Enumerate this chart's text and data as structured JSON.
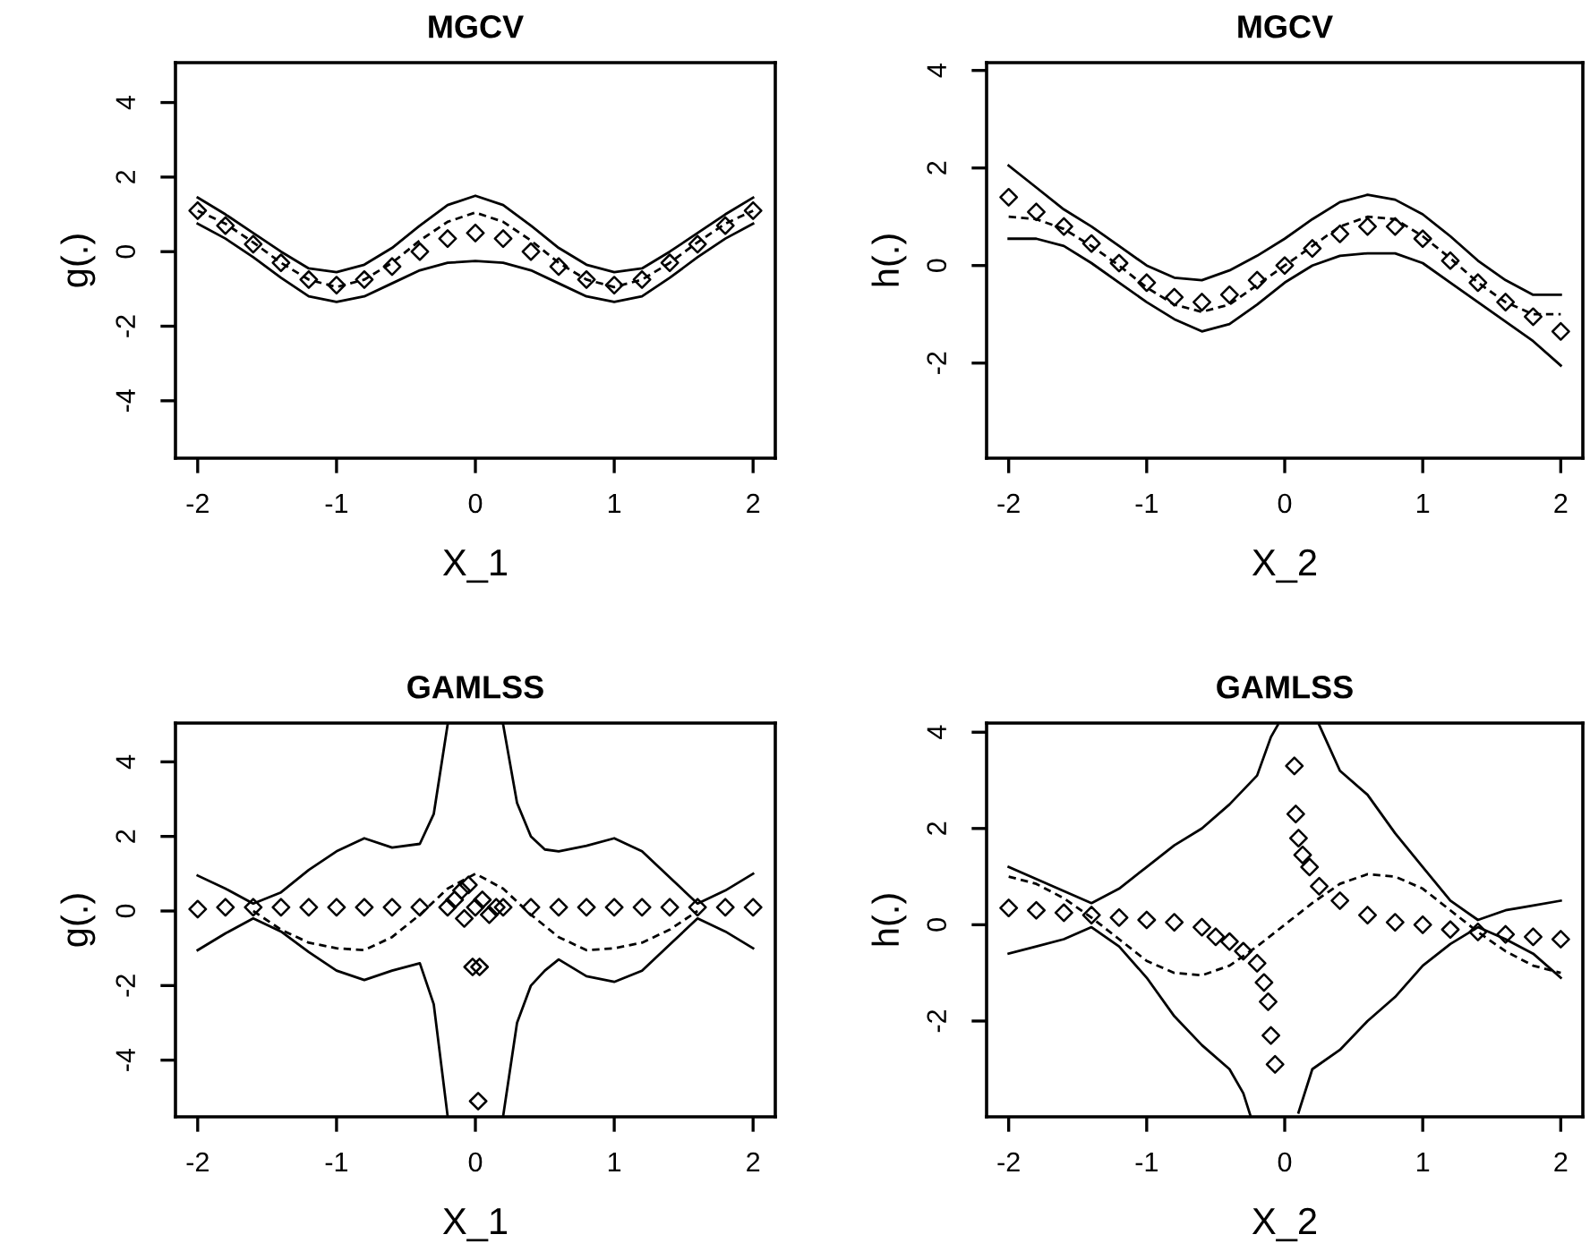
{
  "chart_data": [
    {
      "type": "line",
      "title": "MGCV",
      "xlabel": "X_1",
      "ylabel": "g(.)",
      "xlim": [
        -2.16,
        2.16
      ],
      "ylim": [
        -5.54,
        5.07
      ],
      "xticks": [
        -2,
        -1,
        0,
        1,
        2
      ],
      "yticks": [
        -4,
        -2,
        0,
        2,
        4
      ],
      "grid": false,
      "legend": false,
      "series": [
        {
          "type": "scatter",
          "marker": "diamond",
          "color": "#000000",
          "x": [
            -2,
            -1.8,
            -1.6,
            -1.4,
            -1.2,
            -1,
            -0.8,
            -0.6,
            -0.4,
            -0.2,
            0,
            0.2,
            0.4,
            0.6,
            0.8,
            1,
            1.2,
            1.4,
            1.6,
            1.8,
            2
          ],
          "values": [
            1.1,
            0.7,
            0.2,
            -0.3,
            -0.75,
            -0.9,
            -0.75,
            -0.4,
            0.0,
            0.35,
            0.5,
            0.35,
            0.0,
            -0.4,
            -0.75,
            -0.9,
            -0.75,
            -0.3,
            0.2,
            0.7,
            1.1
          ]
        },
        {
          "line_style": "dashed",
          "color": "#000000",
          "x": [
            -2,
            -1.8,
            -1.6,
            -1.4,
            -1.2,
            -1,
            -0.8,
            -0.6,
            -0.4,
            -0.2,
            0,
            0.2,
            0.4,
            0.6,
            0.8,
            1,
            1.2,
            1.4,
            1.6,
            1.8,
            2
          ],
          "values": [
            1.1,
            0.75,
            0.25,
            -0.3,
            -0.75,
            -0.95,
            -0.75,
            -0.3,
            0.3,
            0.8,
            1.05,
            0.8,
            0.3,
            -0.3,
            -0.75,
            -0.95,
            -0.75,
            -0.3,
            0.25,
            0.75,
            1.1
          ]
        },
        {
          "type": "line",
          "line_style": "solid",
          "color": "#000000",
          "x": [
            -2,
            -1.8,
            -1.6,
            -1.4,
            -1.2,
            -1,
            -0.8,
            -0.6,
            -0.4,
            -0.2,
            0,
            0.2,
            0.4,
            0.6,
            0.8,
            1,
            1.2,
            1.4,
            1.6,
            1.8,
            2
          ],
          "values": [
            1.45,
            1.0,
            0.5,
            0.0,
            -0.45,
            -0.55,
            -0.35,
            0.1,
            0.7,
            1.25,
            1.5,
            1.25,
            0.7,
            0.1,
            -0.35,
            -0.55,
            -0.45,
            0.0,
            0.5,
            1.0,
            1.45
          ]
        },
        {
          "type": "line",
          "line_style": "solid",
          "color": "#000000",
          "x": [
            -2,
            -1.8,
            -1.6,
            -1.4,
            -1.2,
            -1,
            -0.8,
            -0.6,
            -0.4,
            -0.2,
            0,
            0.2,
            0.4,
            0.6,
            0.8,
            1,
            1.2,
            1.4,
            1.6,
            1.8,
            2
          ],
          "values": [
            0.75,
            0.35,
            -0.15,
            -0.7,
            -1.2,
            -1.35,
            -1.2,
            -0.85,
            -0.5,
            -0.3,
            -0.25,
            -0.3,
            -0.5,
            -0.85,
            -1.2,
            -1.35,
            -1.2,
            -0.7,
            -0.15,
            0.35,
            0.75
          ]
        }
      ]
    },
    {
      "type": "line",
      "title": "MGCV",
      "xlabel": "X_2",
      "ylabel": "h(.)",
      "xlim": [
        -2.16,
        2.16
      ],
      "ylim": [
        -3.95,
        4.16
      ],
      "xticks": [
        -2,
        -1,
        0,
        1,
        2
      ],
      "yticks": [
        -2,
        0,
        2,
        4
      ],
      "grid": false,
      "legend": false,
      "series": [
        {
          "type": "scatter",
          "marker": "diamond",
          "color": "#000000",
          "x": [
            -2,
            -1.8,
            -1.6,
            -1.4,
            -1.2,
            -1,
            -0.8,
            -0.6,
            -0.4,
            -0.2,
            0,
            0.2,
            0.4,
            0.6,
            0.8,
            1,
            1.2,
            1.4,
            1.6,
            1.8,
            2
          ],
          "values": [
            1.4,
            1.1,
            0.8,
            0.45,
            0.05,
            -0.35,
            -0.65,
            -0.75,
            -0.6,
            -0.3,
            0.0,
            0.35,
            0.65,
            0.8,
            0.8,
            0.55,
            0.1,
            -0.35,
            -0.75,
            -1.05,
            -1.35
          ]
        },
        {
          "line_style": "dashed",
          "color": "#000000",
          "x": [
            -2,
            -1.8,
            -1.6,
            -1.4,
            -1.2,
            -1,
            -0.8,
            -0.6,
            -0.4,
            -0.2,
            0,
            0.2,
            0.4,
            0.6,
            0.8,
            1,
            1.2,
            1.4,
            1.6,
            1.8,
            2
          ],
          "values": [
            1.0,
            0.95,
            0.75,
            0.4,
            0.0,
            -0.45,
            -0.8,
            -0.95,
            -0.8,
            -0.4,
            0.0,
            0.4,
            0.8,
            1.0,
            0.95,
            0.6,
            0.15,
            -0.35,
            -0.75,
            -1.0,
            -1.0
          ]
        },
        {
          "type": "line",
          "line_style": "solid",
          "color": "#000000",
          "x": [
            -2,
            -1.8,
            -1.6,
            -1.4,
            -1.2,
            -1,
            -0.8,
            -0.6,
            -0.4,
            -0.2,
            0,
            0.2,
            0.4,
            0.6,
            0.8,
            1,
            1.2,
            1.4,
            1.6,
            1.8,
            2
          ],
          "values": [
            2.05,
            1.6,
            1.15,
            0.8,
            0.4,
            0.0,
            -0.25,
            -0.3,
            -0.1,
            0.2,
            0.55,
            0.95,
            1.3,
            1.45,
            1.35,
            1.05,
            0.6,
            0.1,
            -0.3,
            -0.6,
            -0.6
          ]
        },
        {
          "type": "line",
          "line_style": "solid",
          "color": "#000000",
          "x": [
            -2,
            -1.8,
            -1.6,
            -1.4,
            -1.2,
            -1,
            -0.8,
            -0.6,
            -0.4,
            -0.2,
            0,
            0.2,
            0.4,
            0.6,
            0.8,
            1,
            1.2,
            1.4,
            1.6,
            1.8,
            2
          ],
          "values": [
            0.55,
            0.55,
            0.4,
            0.05,
            -0.35,
            -0.75,
            -1.1,
            -1.35,
            -1.2,
            -0.8,
            -0.35,
            0.0,
            0.2,
            0.25,
            0.25,
            0.05,
            -0.35,
            -0.75,
            -1.15,
            -1.55,
            -2.05
          ]
        }
      ]
    },
    {
      "type": "line",
      "title": "GAMLSS",
      "xlabel": "X_1",
      "ylabel": "g(.)",
      "xlim": [
        -2.16,
        2.16
      ],
      "ylim": [
        -5.52,
        5.04
      ],
      "xticks": [
        -2,
        -1,
        0,
        1,
        2
      ],
      "yticks": [
        -4,
        -2,
        0,
        2,
        4
      ],
      "grid": false,
      "legend": false,
      "series": [
        {
          "type": "scatter",
          "marker": "diamond",
          "color": "#000000",
          "x": [
            -2,
            -1.8,
            -1.6,
            -1.4,
            -1.2,
            -1,
            -0.8,
            -0.6,
            -0.4,
            -0.2,
            0,
            0.2,
            0.4,
            0.6,
            0.8,
            1,
            1.2,
            1.4,
            1.6,
            1.8,
            2,
            -0.15,
            -0.1,
            -0.05,
            0.05,
            0.1,
            -0.08,
            0.15,
            -0.02,
            0.03,
            0.02
          ],
          "values": [
            0.05,
            0.1,
            0.1,
            0.1,
            0.1,
            0.1,
            0.1,
            0.1,
            0.1,
            0.1,
            0.1,
            0.1,
            0.1,
            0.1,
            0.1,
            0.1,
            0.1,
            0.1,
            0.1,
            0.1,
            0.1,
            0.3,
            0.55,
            0.7,
            0.3,
            -0.1,
            -0.2,
            0.1,
            -1.5,
            -1.5,
            -5.1
          ]
        },
        {
          "line_style": "dashed",
          "color": "#000000",
          "x": [
            -1.6,
            -1.4,
            -1.2,
            -1,
            -0.8,
            -0.6,
            -0.4,
            -0.2,
            0,
            0.2,
            0.4,
            0.6,
            0.8,
            1,
            1.2,
            1.4,
            1.6
          ],
          "values": [
            0.0,
            -0.5,
            -0.85,
            -1.0,
            -1.05,
            -0.7,
            -0.1,
            0.6,
            1.0,
            0.6,
            -0.1,
            -0.7,
            -1.05,
            -1.0,
            -0.85,
            -0.5,
            0.0
          ]
        },
        {
          "type": "line",
          "line_style": "solid",
          "color": "#000000",
          "x": [
            -2,
            -1.8,
            -1.6,
            -1.4,
            -1.2,
            -1,
            -0.8,
            -0.6,
            -0.4,
            -0.3,
            -0.2,
            0,
            0.2,
            0.3,
            0.4,
            0.5,
            0.6,
            0.8,
            1,
            1.2,
            1.4,
            1.6,
            1.8,
            2
          ],
          "values": [
            0.95,
            0.6,
            0.2,
            0.5,
            1.1,
            1.6,
            1.95,
            1.7,
            1.8,
            2.6,
            5.0,
            null,
            5.0,
            2.9,
            2.0,
            1.65,
            1.6,
            1.75,
            1.95,
            1.6,
            0.9,
            0.2,
            0.55,
            1.0
          ]
        },
        {
          "type": "line",
          "line_style": "solid",
          "color": "#000000",
          "x": [
            -2,
            -1.8,
            -1.6,
            -1.4,
            -1.2,
            -1,
            -0.8,
            -0.6,
            -0.4,
            -0.3,
            -0.2,
            0,
            0.2,
            0.3,
            0.4,
            0.5,
            0.6,
            0.8,
            1,
            1.2,
            1.4,
            1.6,
            1.8,
            2
          ],
          "values": [
            -1.05,
            -0.6,
            -0.2,
            -0.55,
            -1.1,
            -1.6,
            -1.85,
            -1.6,
            -1.4,
            -2.5,
            -5.5,
            null,
            -5.5,
            -3.0,
            -2.0,
            -1.6,
            -1.3,
            -1.75,
            -1.9,
            -1.6,
            -0.9,
            -0.2,
            -0.55,
            -1.0
          ]
        }
      ]
    },
    {
      "type": "line",
      "title": "GAMLSS",
      "xlabel": "X_2",
      "ylabel": "h(.)",
      "xlim": [
        -2.16,
        2.16
      ],
      "ylim": [
        -3.99,
        4.19
      ],
      "xticks": [
        -2,
        -1,
        0,
        1,
        2
      ],
      "yticks": [
        -2,
        0,
        2,
        4
      ],
      "grid": false,
      "legend": false,
      "series": [
        {
          "type": "scatter",
          "marker": "diamond",
          "color": "#000000",
          "x": [
            -2,
            -1.8,
            -1.6,
            -1.4,
            -1.2,
            -1,
            -0.8,
            -0.6,
            -0.5,
            -0.4,
            -0.3,
            -0.2,
            -0.15,
            -0.12,
            -0.1,
            -0.07,
            0.07,
            0.08,
            0.1,
            0.13,
            0.18,
            0.25,
            0.4,
            0.6,
            0.8,
            1,
            1.2,
            1.4,
            1.6,
            1.8,
            2
          ],
          "values": [
            0.35,
            0.3,
            0.25,
            0.2,
            0.15,
            0.1,
            0.05,
            -0.05,
            -0.25,
            -0.35,
            -0.55,
            -0.8,
            -1.2,
            -1.6,
            -2.3,
            -2.9,
            3.3,
            2.3,
            1.8,
            1.45,
            1.2,
            0.8,
            0.5,
            0.2,
            0.05,
            0.0,
            -0.1,
            -0.15,
            -0.2,
            -0.25,
            -0.3
          ]
        },
        {
          "line_style": "dashed",
          "color": "#000000",
          "x": [
            -2,
            -1.8,
            -1.6,
            -1.4,
            -1.2,
            -1,
            -0.8,
            -0.6,
            -0.4,
            -0.2,
            0,
            0.2,
            0.4,
            0.6,
            0.8,
            1,
            1.2,
            1.4,
            1.6,
            1.8,
            2
          ],
          "values": [
            1.0,
            0.85,
            0.55,
            0.15,
            -0.3,
            -0.75,
            -1.0,
            -1.05,
            -0.85,
            -0.45,
            0.0,
            0.45,
            0.85,
            1.05,
            1.0,
            0.75,
            0.3,
            -0.15,
            -0.55,
            -0.85,
            -1.0
          ]
        },
        {
          "type": "line",
          "line_style": "solid",
          "color": "#000000",
          "x": [
            -2,
            -1.8,
            -1.6,
            -1.4,
            -1.2,
            -1,
            -0.8,
            -0.6,
            -0.4,
            -0.2,
            -0.1,
            -0.05,
            0,
            0.25,
            0.4,
            0.6,
            0.8,
            1,
            1.2,
            1.4,
            1.6,
            1.8,
            2
          ],
          "values": [
            1.2,
            0.95,
            0.7,
            0.45,
            0.75,
            1.2,
            1.65,
            2.0,
            2.5,
            3.1,
            3.9,
            4.15,
            null,
            4.15,
            3.2,
            2.7,
            1.9,
            1.2,
            0.5,
            0.1,
            0.3,
            0.4,
            0.5
          ]
        },
        {
          "type": "line",
          "line_style": "solid",
          "color": "#000000",
          "x": [
            -2,
            -1.8,
            -1.6,
            -1.4,
            -1.2,
            -1,
            -0.8,
            -0.6,
            -0.4,
            -0.3,
            -0.25,
            0,
            0.1,
            0.2,
            0.4,
            0.6,
            0.8,
            1,
            1.2,
            1.4,
            1.6,
            1.8,
            2
          ],
          "values": [
            -0.6,
            -0.45,
            -0.3,
            -0.05,
            -0.45,
            -1.1,
            -1.9,
            -2.5,
            -3.0,
            -3.5,
            -3.95,
            null,
            -3.9,
            -3.0,
            -2.6,
            -2.0,
            -1.5,
            -0.85,
            -0.4,
            -0.05,
            -0.3,
            -0.6,
            -1.1
          ]
        }
      ]
    }
  ]
}
